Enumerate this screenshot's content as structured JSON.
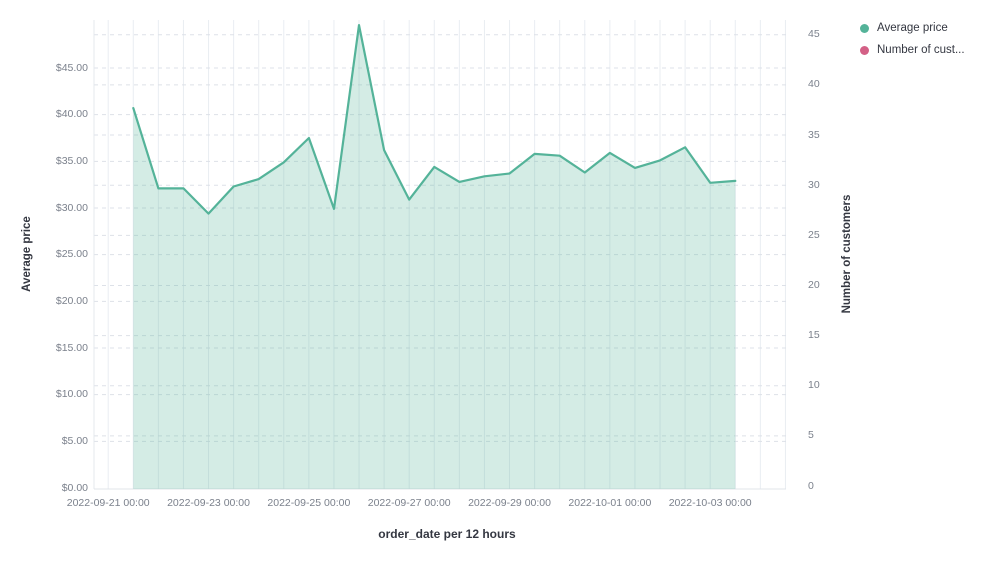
{
  "legend": {
    "items": [
      {
        "label": "Average price",
        "color": "#54B399"
      },
      {
        "label": "Number of cust...",
        "color": "#D36086"
      }
    ]
  },
  "axes": {
    "left": {
      "title": "Average price",
      "tick_labels": [
        "$0.00",
        "$5.00",
        "$10.00",
        "$15.00",
        "$20.00",
        "$25.00",
        "$30.00",
        "$35.00",
        "$40.00",
        "$45.00"
      ]
    },
    "right": {
      "title": "Number of customers",
      "tick_labels": [
        "0",
        "5",
        "10",
        "15",
        "20",
        "25",
        "30",
        "35",
        "40",
        "45"
      ]
    },
    "bottom": {
      "title": "order_date per 12 hours",
      "tick_labels": [
        "2022-09-21 00:00",
        "2022-09-23 00:00",
        "2022-09-25 00:00",
        "2022-09-27 00:00",
        "2022-09-29 00:00",
        "2022-10-01 00:00",
        "2022-10-03 00:00"
      ]
    }
  },
  "chart_data": {
    "type": "area",
    "title": "",
    "xlabel": "order_date per 12 hours",
    "ylabel_left": "Average price",
    "ylabel_right": "Number of customers",
    "ylim_left": [
      0,
      45
    ],
    "ylim_right": [
      0,
      45
    ],
    "grid": true,
    "legend_position": "top-right",
    "x": [
      "2022-09-21 12:00",
      "2022-09-22 00:00",
      "2022-09-22 12:00",
      "2022-09-23 00:00",
      "2022-09-23 12:00",
      "2022-09-24 00:00",
      "2022-09-24 12:00",
      "2022-09-25 00:00",
      "2022-09-25 12:00",
      "2022-09-26 00:00",
      "2022-09-26 12:00",
      "2022-09-27 00:00",
      "2022-09-27 12:00",
      "2022-09-28 00:00",
      "2022-09-28 12:00",
      "2022-09-29 00:00",
      "2022-09-29 12:00",
      "2022-09-30 00:00",
      "2022-09-30 12:00",
      "2022-10-01 00:00",
      "2022-10-01 12:00",
      "2022-10-02 00:00",
      "2022-10-02 12:00",
      "2022-10-03 00:00",
      "2022-10-03 12:00"
    ],
    "series": [
      {
        "name": "Average price",
        "axis": "left",
        "color": "#54B399",
        "values": [
          40.7,
          32.1,
          32.1,
          29.4,
          32.3,
          33.1,
          34.9,
          37.5,
          29.9,
          49.6,
          36.2,
          30.9,
          34.4,
          32.8,
          33.4,
          33.7,
          35.8,
          35.6,
          33.8,
          35.9,
          34.3,
          35.1,
          36.5,
          32.7,
          32.9
        ]
      }
    ],
    "legend_only_series": [
      {
        "name": "Number of cust...",
        "axis": "right",
        "color": "#D36086"
      }
    ]
  }
}
